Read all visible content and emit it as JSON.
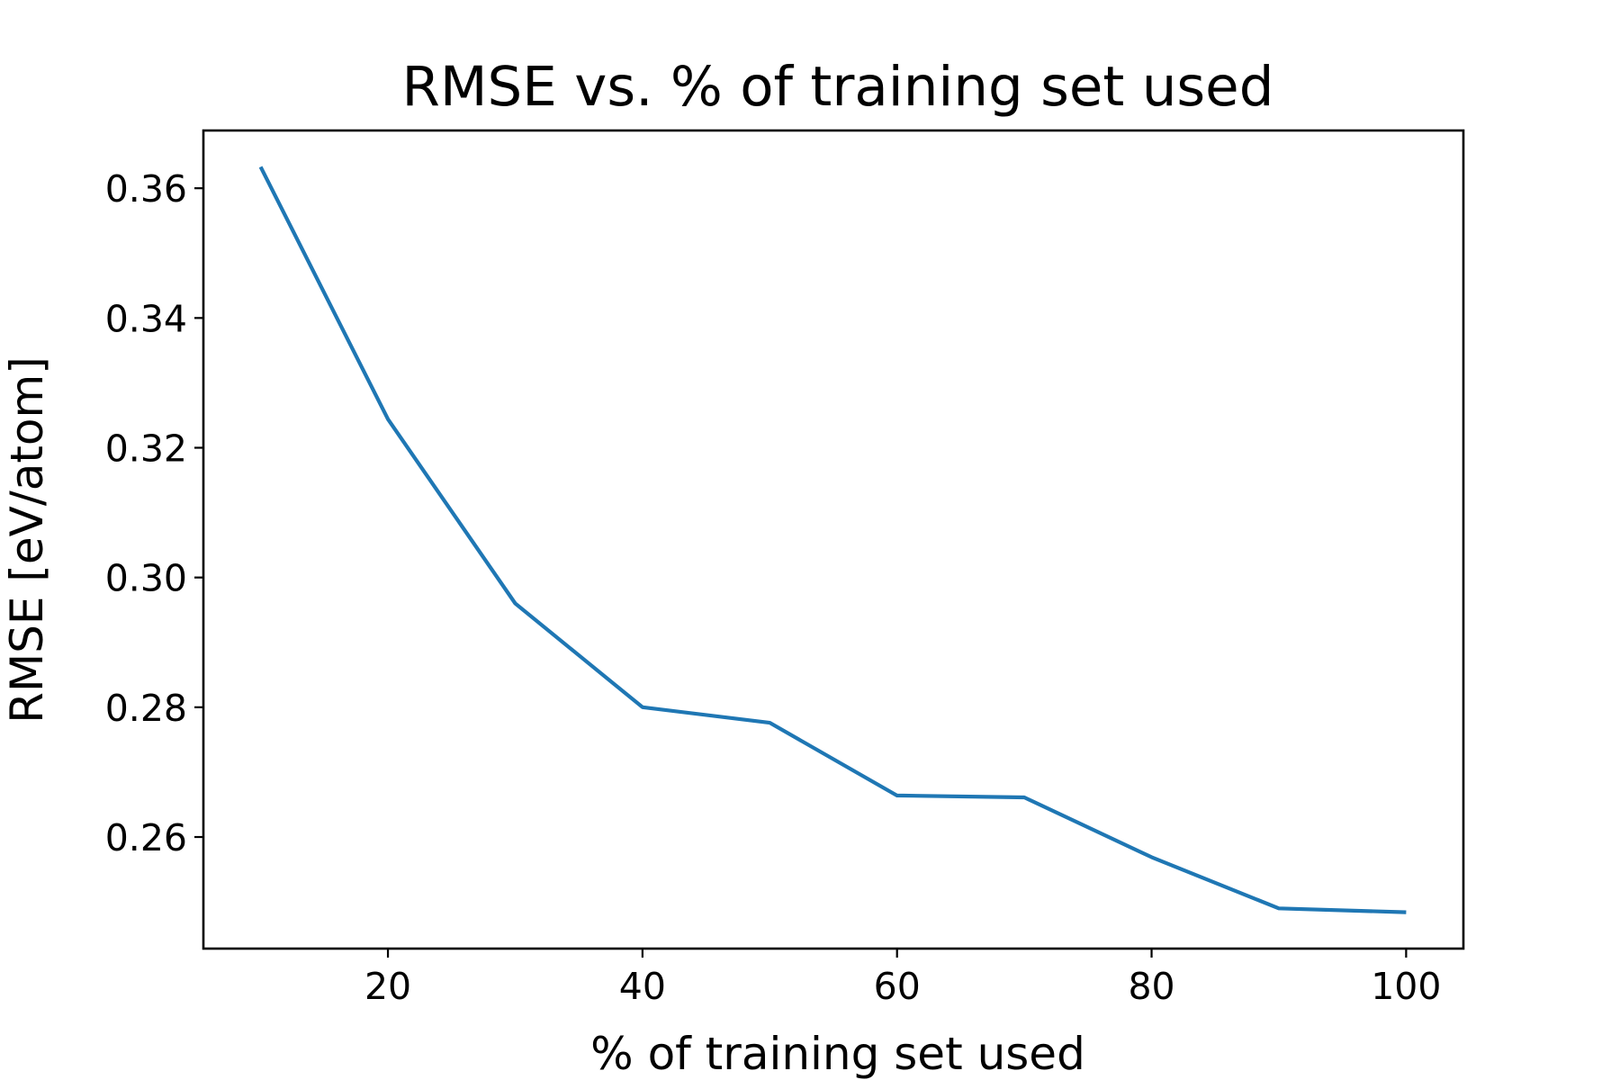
{
  "chart_data": {
    "type": "line",
    "title": "RMSE vs. % of training set used",
    "xlabel": "% of training set used",
    "ylabel": "RMSE [eV/atom]",
    "x": [
      10,
      20,
      30,
      40,
      50,
      60,
      70,
      80,
      90,
      100
    ],
    "series": [
      {
        "values": [
          0.3633,
          0.3244,
          0.296,
          0.28,
          0.2776,
          0.2664,
          0.2661,
          0.2569,
          0.249,
          0.2484
        ],
        "color": "#1f77b4"
      }
    ],
    "xlim": [
      5.5,
      104.5
    ],
    "ylim": [
      0.2428,
      0.3689
    ],
    "xticks": [
      20,
      40,
      60,
      80,
      100
    ],
    "xtick_labels": [
      "20",
      "40",
      "60",
      "80",
      "100"
    ],
    "yticks": [
      0.26,
      0.28,
      0.3,
      0.32,
      0.34,
      0.36
    ],
    "ytick_labels": [
      "0.26",
      "0.28",
      "0.30",
      "0.32",
      "0.34",
      "0.36"
    ],
    "grid": false,
    "legend": false
  }
}
